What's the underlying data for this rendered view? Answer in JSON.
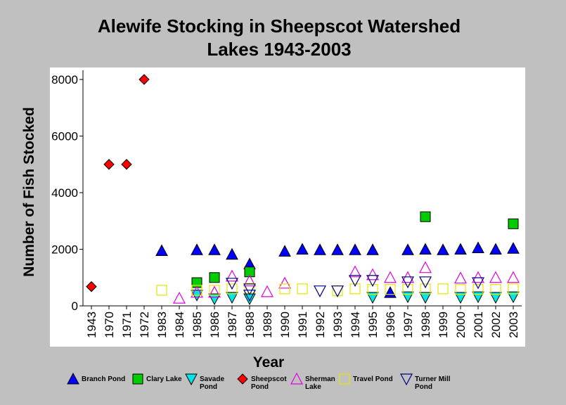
{
  "chart_data": {
    "type": "scatter",
    "title_lines": [
      "Alewife Stocking in Sheepscot Watershed",
      "Lakes 1943-2003"
    ],
    "xlabel": "Year",
    "ylabel": "Number of Fish Stocked",
    "ylim": [
      0,
      8000
    ],
    "yticks": [
      0,
      2000,
      4000,
      6000,
      8000
    ],
    "categories": [
      "1943",
      "1970",
      "1971",
      "1972",
      "1983",
      "1984",
      "1985",
      "1986",
      "1987",
      "1988",
      "1989",
      "1990",
      "1991",
      "1992",
      "1993",
      "1994",
      "1995",
      "1996",
      "1997",
      "1998",
      "1999",
      "2000",
      "2001",
      "2002",
      "2003"
    ],
    "legend_position": "bottom",
    "series": [
      {
        "name_lines": [
          "Branch Pond"
        ],
        "marker": "triangle-up",
        "fill": "#0000ff",
        "stroke": "#000000",
        "points": [
          [
            "1983",
            1950
          ],
          [
            "1985",
            1980
          ],
          [
            "1986",
            1980
          ],
          [
            "1987",
            1820
          ],
          [
            "1988",
            1480
          ],
          [
            "1990",
            1930
          ],
          [
            "1991",
            2000
          ],
          [
            "1992",
            1980
          ],
          [
            "1993",
            1980
          ],
          [
            "1994",
            1980
          ],
          [
            "1995",
            1980
          ],
          [
            "1996",
            470
          ],
          [
            "1997",
            1980
          ],
          [
            "1998",
            2000
          ],
          [
            "1999",
            1980
          ],
          [
            "2000",
            2000
          ],
          [
            "2001",
            2050
          ],
          [
            "2002",
            2000
          ],
          [
            "2003",
            2030
          ]
        ]
      },
      {
        "name_lines": [
          "Clary Lake"
        ],
        "marker": "square",
        "fill": "#00cc00",
        "stroke": "#000000",
        "points": [
          [
            "1985",
            820
          ],
          [
            "1986",
            1000
          ],
          [
            "1988",
            1200
          ],
          [
            "1998",
            3150
          ],
          [
            "2003",
            2900
          ]
        ]
      },
      {
        "name_lines": [
          "Savade",
          "Pond"
        ],
        "marker": "triangle-down",
        "fill": "#00e5e5",
        "stroke": "#000000",
        "points": [
          [
            "1985",
            380
          ],
          [
            "1986",
            250
          ],
          [
            "1987",
            300
          ],
          [
            "1988",
            250
          ],
          [
            "1995",
            300
          ],
          [
            "1997",
            320
          ],
          [
            "1998",
            300
          ],
          [
            "2000",
            300
          ],
          [
            "2001",
            320
          ],
          [
            "2002",
            300
          ],
          [
            "2003",
            320
          ]
        ]
      },
      {
        "name_lines": [
          "Sheepscot",
          "Pond"
        ],
        "marker": "diamond",
        "fill": "#ff0000",
        "stroke": "#000000",
        "points": [
          [
            "1943",
            680
          ],
          [
            "1970",
            5000
          ],
          [
            "1971",
            5000
          ],
          [
            "1972",
            8000
          ]
        ]
      },
      {
        "name_lines": [
          "Sherman",
          "Lake"
        ],
        "marker": "triangle-up-open",
        "fill": "none",
        "stroke": "#e000e0",
        "points": [
          [
            "1984",
            270
          ],
          [
            "1985",
            480
          ],
          [
            "1986",
            480
          ],
          [
            "1987",
            1050
          ],
          [
            "1988",
            880
          ],
          [
            "1989",
            500
          ],
          [
            "1990",
            800
          ],
          [
            "1994",
            1200
          ],
          [
            "1995",
            1100
          ],
          [
            "1996",
            1000
          ],
          [
            "1997",
            1000
          ],
          [
            "1998",
            1350
          ],
          [
            "2000",
            980
          ],
          [
            "2001",
            1000
          ],
          [
            "2002",
            1000
          ],
          [
            "2003",
            1000
          ]
        ]
      },
      {
        "name_lines": [
          "Travel Pond"
        ],
        "marker": "square-open",
        "fill": "none",
        "stroke": "#e5e500",
        "points": [
          [
            "1983",
            550
          ],
          [
            "1985",
            550
          ],
          [
            "1986",
            550
          ],
          [
            "1987",
            600
          ],
          [
            "1988",
            620
          ],
          [
            "1990",
            600
          ],
          [
            "1991",
            600
          ],
          [
            "1993",
            530
          ],
          [
            "1994",
            600
          ],
          [
            "1995",
            580
          ],
          [
            "1996",
            580
          ],
          [
            "1997",
            580
          ],
          [
            "1998",
            600
          ],
          [
            "1999",
            600
          ],
          [
            "2000",
            580
          ],
          [
            "2001",
            580
          ],
          [
            "2002",
            580
          ],
          [
            "2003",
            600
          ]
        ]
      },
      {
        "name_lines": [
          "Turner Mill",
          "Pond"
        ],
        "marker": "triangle-down-open",
        "fill": "none",
        "stroke": "#000080",
        "points": [
          [
            "1987",
            800
          ],
          [
            "1988",
            600
          ],
          [
            "1988",
            380
          ],
          [
            "1992",
            530
          ],
          [
            "1993",
            530
          ],
          [
            "1994",
            900
          ],
          [
            "1995",
            900
          ],
          [
            "1997",
            850
          ],
          [
            "1998",
            850
          ],
          [
            "2001",
            820
          ]
        ]
      }
    ]
  }
}
